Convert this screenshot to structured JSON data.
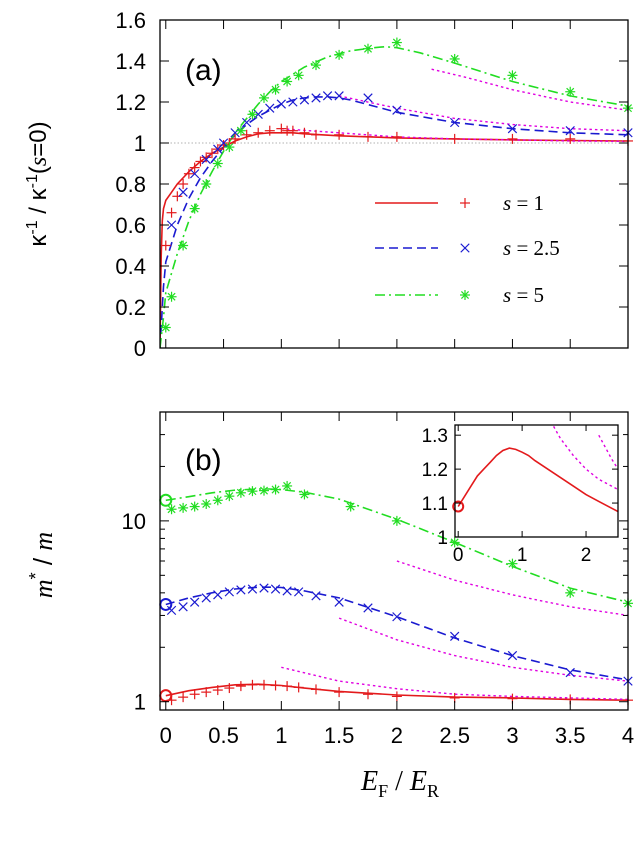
{
  "colors": {
    "s1": "#e31a1c",
    "s2_5": "#1a1ad0",
    "s5": "#22dd22",
    "dotted": "#e000e0",
    "ref": "#999999"
  },
  "shared_x_label": {
    "main": "E",
    "main_sub": "F",
    "sep": " / ",
    "den": "E",
    "den_sub": "R"
  },
  "chart_data": [
    {
      "id": "a",
      "type": "line",
      "panel_label": "(a)",
      "ylabel": {
        "kappa1": "κ",
        "sup1": "-1",
        "mid": " / ",
        "kappa2": "κ",
        "sup2": "-1",
        "tail_open": "(",
        "s": "s",
        "tail_close": "=0)"
      },
      "xlim": [
        -0.05,
        4
      ],
      "ylim": [
        0,
        1.6
      ],
      "x_ticks": [
        0,
        0.5,
        1,
        1.5,
        2,
        2.5,
        3,
        3.5,
        4
      ],
      "y_ticks": [
        0,
        0.2,
        0.4,
        0.6,
        0.8,
        1,
        1.2,
        1.4,
        1.6
      ],
      "y_tick_labels": [
        "0",
        "0.2",
        "0.4",
        "0.6",
        "0.8",
        "1",
        "1.2",
        "1.4",
        "1.6"
      ],
      "legend_position": "center-right",
      "reference_line": {
        "y": 1,
        "style": "dotted"
      },
      "series": [
        {
          "name": "s = 1",
          "s_value": "1",
          "line": "solid",
          "marker": "+",
          "color_key": "s1",
          "x": [
            -0.05,
            -0.04,
            -0.03,
            -0.02,
            0.0,
            0.05,
            0.1,
            0.2,
            0.3,
            0.4,
            0.5,
            0.6,
            0.7,
            0.8,
            0.9,
            1.0,
            1.1,
            1.2,
            1.5,
            2.0,
            2.5,
            3.0,
            3.5,
            4.0
          ],
          "y": [
            0.0,
            0.45,
            0.62,
            0.68,
            0.72,
            0.76,
            0.8,
            0.86,
            0.91,
            0.95,
            0.98,
            1.01,
            1.03,
            1.045,
            1.05,
            1.05,
            1.05,
            1.045,
            1.035,
            1.025,
            1.02,
            1.015,
            1.012,
            1.01
          ],
          "points_x": [
            0.0,
            0.05,
            0.1,
            0.15,
            0.2,
            0.25,
            0.3,
            0.35,
            0.4,
            0.45,
            0.5,
            0.55,
            0.6,
            0.7,
            0.8,
            0.9,
            1.0,
            1.05,
            1.1,
            1.2,
            1.3,
            1.5,
            1.75,
            2.0,
            2.5,
            3.0,
            3.5,
            4.0
          ],
          "points_y": [
            0.5,
            0.66,
            0.74,
            0.8,
            0.85,
            0.88,
            0.91,
            0.93,
            0.95,
            0.97,
            0.99,
            1.0,
            1.02,
            1.04,
            1.05,
            1.06,
            1.07,
            1.06,
            1.06,
            1.05,
            1.04,
            1.04,
            1.03,
            1.03,
            1.02,
            1.02,
            1.02,
            1.01
          ]
        },
        {
          "name": "s = 2.5",
          "s_value": "2.5",
          "line": "dashed",
          "marker": "x",
          "color_key": "s2_5",
          "x": [
            -0.05,
            -0.02,
            0.0,
            0.1,
            0.2,
            0.3,
            0.4,
            0.5,
            0.6,
            0.7,
            0.8,
            0.9,
            1.0,
            1.1,
            1.2,
            1.3,
            1.4,
            1.5,
            1.6,
            1.8,
            2.0,
            2.5,
            3.0,
            3.5,
            4.0
          ],
          "y": [
            0.0,
            0.3,
            0.42,
            0.6,
            0.73,
            0.83,
            0.91,
            0.98,
            1.04,
            1.09,
            1.13,
            1.16,
            1.19,
            1.21,
            1.22,
            1.225,
            1.225,
            1.22,
            1.21,
            1.18,
            1.15,
            1.1,
            1.07,
            1.05,
            1.04
          ],
          "points_x": [
            0.05,
            0.15,
            0.25,
            0.35,
            0.45,
            0.5,
            0.6,
            0.7,
            0.8,
            0.9,
            1.0,
            1.1,
            1.2,
            1.3,
            1.4,
            1.5,
            1.75,
            2.0,
            2.5,
            3.0,
            3.5,
            4.0
          ],
          "points_y": [
            0.6,
            0.76,
            0.85,
            0.92,
            0.97,
            1.0,
            1.05,
            1.1,
            1.14,
            1.17,
            1.19,
            1.2,
            1.21,
            1.22,
            1.23,
            1.23,
            1.22,
            1.16,
            1.1,
            1.07,
            1.06,
            1.05
          ]
        },
        {
          "name": "s = 5",
          "s_value": "5",
          "line": "dash-dot",
          "marker": "*",
          "color_key": "s5",
          "x": [
            -0.05,
            -0.02,
            0.0,
            0.1,
            0.2,
            0.3,
            0.4,
            0.5,
            0.6,
            0.7,
            0.8,
            0.9,
            1.0,
            1.2,
            1.4,
            1.6,
            1.8,
            1.9,
            2.0,
            2.2,
            2.5,
            3.0,
            3.5,
            4.0
          ],
          "y": [
            0.0,
            0.15,
            0.27,
            0.46,
            0.62,
            0.75,
            0.86,
            0.96,
            1.05,
            1.12,
            1.19,
            1.25,
            1.3,
            1.37,
            1.42,
            1.45,
            1.465,
            1.47,
            1.465,
            1.44,
            1.39,
            1.3,
            1.23,
            1.18
          ],
          "points_x": [
            0.0,
            0.05,
            0.15,
            0.25,
            0.35,
            0.45,
            0.55,
            0.65,
            0.75,
            0.85,
            0.95,
            1.05,
            1.15,
            1.3,
            1.5,
            1.75,
            2.0,
            2.5,
            3.0,
            3.5,
            4.0
          ],
          "points_y": [
            0.1,
            0.25,
            0.5,
            0.68,
            0.8,
            0.9,
            0.98,
            1.06,
            1.14,
            1.22,
            1.26,
            1.3,
            1.33,
            1.38,
            1.43,
            1.46,
            1.49,
            1.41,
            1.33,
            1.25,
            1.17
          ]
        },
        {
          "name": "",
          "line": "dotted",
          "color_key": "dotted",
          "x": [
            2.3,
            2.6,
            3.0,
            3.5,
            4.0
          ],
          "y": [
            1.36,
            1.32,
            1.26,
            1.2,
            1.16
          ]
        },
        {
          "name": "",
          "line": "dotted",
          "color_key": "dotted",
          "x": [
            1.5,
            2.0,
            2.5,
            3.0,
            3.5,
            4.0
          ],
          "y": [
            1.23,
            1.17,
            1.12,
            1.09,
            1.07,
            1.06
          ]
        },
        {
          "name": "",
          "line": "dotted",
          "color_key": "dotted",
          "x": [
            1.0,
            1.5,
            2.0,
            2.5,
            3.0,
            3.5,
            4.0
          ],
          "y": [
            1.07,
            1.05,
            1.03,
            1.02,
            1.015,
            1.01,
            1.008
          ]
        }
      ]
    },
    {
      "id": "b",
      "type": "line",
      "panel_label": "(b)",
      "ylabel": {
        "m": "m",
        "star": "*",
        "sep": " / ",
        "m2": "m"
      },
      "yscale": "log",
      "xlim": [
        -0.05,
        4
      ],
      "ylim": [
        0.9,
        40
      ],
      "x_ticks": [
        0,
        0.5,
        1,
        1.5,
        2,
        2.5,
        3,
        3.5,
        4
      ],
      "x_tick_labels": [
        "0",
        "0.5",
        "1",
        "1.5",
        "2",
        "2.5",
        "3",
        "3.5",
        "4"
      ],
      "y_ticks": [
        1,
        10
      ],
      "y_tick_labels": [
        "1",
        "10"
      ],
      "series": [
        {
          "name": "s = 1",
          "line": "solid",
          "marker": "+",
          "color_key": "s1",
          "x": [
            0.0,
            0.2,
            0.4,
            0.6,
            0.8,
            1.0,
            1.2,
            1.5,
            2.0,
            2.5,
            3.0,
            3.5,
            4.0
          ],
          "y": [
            1.08,
            1.15,
            1.2,
            1.24,
            1.25,
            1.23,
            1.19,
            1.14,
            1.09,
            1.06,
            1.05,
            1.03,
            1.02
          ],
          "open_circle": {
            "x": 0.0,
            "y": 1.08
          },
          "points_x": [
            0.05,
            0.15,
            0.25,
            0.35,
            0.45,
            0.55,
            0.65,
            0.75,
            0.85,
            0.95,
            1.05,
            1.15,
            1.3,
            1.5,
            1.75,
            2.0,
            2.5,
            3.0,
            3.5,
            4.0
          ],
          "points_y": [
            1.02,
            1.06,
            1.1,
            1.13,
            1.16,
            1.19,
            1.22,
            1.24,
            1.24,
            1.23,
            1.22,
            1.2,
            1.17,
            1.13,
            1.1,
            1.07,
            1.05,
            1.04,
            1.03,
            1.02
          ]
        },
        {
          "name": "s = 2.5",
          "line": "dashed",
          "marker": "x",
          "color_key": "s2_5",
          "x": [
            0.0,
            0.2,
            0.4,
            0.6,
            0.8,
            0.9,
            1.0,
            1.2,
            1.5,
            2.0,
            2.5,
            3.0,
            3.5,
            4.0
          ],
          "y": [
            3.45,
            3.75,
            4.0,
            4.2,
            4.3,
            4.3,
            4.28,
            4.1,
            3.75,
            2.95,
            2.25,
            1.8,
            1.5,
            1.32
          ],
          "open_circle": {
            "x": 0.0,
            "y": 3.45
          },
          "points_x": [
            0.05,
            0.15,
            0.25,
            0.35,
            0.45,
            0.55,
            0.65,
            0.75,
            0.85,
            0.95,
            1.05,
            1.15,
            1.3,
            1.5,
            1.75,
            2.0,
            2.5,
            3.0,
            3.5,
            4.0
          ],
          "points_y": [
            3.2,
            3.35,
            3.55,
            3.75,
            3.9,
            4.05,
            4.15,
            4.2,
            4.25,
            4.2,
            4.1,
            4.05,
            3.85,
            3.55,
            3.3,
            2.95,
            2.3,
            1.8,
            1.45,
            1.3
          ]
        },
        {
          "name": "s = 5",
          "line": "dash-dot",
          "marker": "*",
          "color_key": "s5",
          "x": [
            0.0,
            0.2,
            0.4,
            0.6,
            0.8,
            0.9,
            1.0,
            1.2,
            1.5,
            2.0,
            2.5,
            3.0,
            3.5,
            4.0
          ],
          "y": [
            13.0,
            13.6,
            14.3,
            14.8,
            15.0,
            15.0,
            14.9,
            14.4,
            13.2,
            10.2,
            7.6,
            5.6,
            4.25,
            3.55
          ],
          "open_circle": {
            "x": 0.0,
            "y": 13.0
          },
          "points_x": [
            0.05,
            0.15,
            0.25,
            0.35,
            0.45,
            0.55,
            0.65,
            0.75,
            0.85,
            0.95,
            1.05,
            1.2,
            1.6,
            2.0,
            2.5,
            3.0,
            3.5,
            4.0
          ],
          "points_y": [
            11.6,
            11.8,
            12.0,
            12.4,
            13.0,
            13.7,
            14.3,
            14.6,
            14.7,
            14.9,
            15.6,
            14.0,
            12.0,
            10.0,
            7.6,
            5.8,
            4.0,
            3.5
          ]
        },
        {
          "name": "",
          "line": "dotted",
          "color_key": "dotted",
          "x": [
            2.0,
            2.5,
            3.0,
            3.5,
            4.0
          ],
          "y": [
            6.0,
            4.7,
            3.9,
            3.35,
            3.0
          ]
        },
        {
          "name": "",
          "line": "dotted",
          "color_key": "dotted",
          "x": [
            1.5,
            2.0,
            2.5,
            3.0,
            3.5,
            4.0
          ],
          "y": [
            2.9,
            2.2,
            1.8,
            1.55,
            1.4,
            1.3
          ]
        },
        {
          "name": "",
          "line": "dotted",
          "color_key": "dotted",
          "x": [
            1.0,
            1.5,
            2.0,
            2.5,
            3.0,
            3.5,
            4.0
          ],
          "y": [
            1.55,
            1.3,
            1.18,
            1.1,
            1.07,
            1.05,
            1.03
          ]
        }
      ]
    },
    {
      "id": "b-inset",
      "type": "line",
      "xlim": [
        -0.05,
        2.5
      ],
      "ylim": [
        1.0,
        1.33
      ],
      "x_ticks": [
        0,
        1,
        2
      ],
      "x_tick_labels": [
        "0",
        "1",
        "2"
      ],
      "y_ticks": [
        1,
        1.1,
        1.2,
        1.3
      ],
      "y_tick_labels": [
        "1",
        "1.1",
        "1.2",
        "1.3"
      ],
      "series": [
        {
          "name": "",
          "line": "solid",
          "color_key": "s1",
          "x": [
            0.0,
            0.1,
            0.2,
            0.3,
            0.4,
            0.5,
            0.6,
            0.7,
            0.8,
            0.9,
            1.0,
            1.1,
            1.2,
            1.4,
            1.6,
            1.8,
            2.0,
            2.2,
            2.4,
            2.5
          ],
          "y": [
            1.09,
            1.12,
            1.15,
            1.18,
            1.2,
            1.22,
            1.24,
            1.255,
            1.262,
            1.258,
            1.25,
            1.24,
            1.225,
            1.2,
            1.175,
            1.15,
            1.125,
            1.105,
            1.085,
            1.075
          ],
          "open_circle": {
            "x": 0.0,
            "y": 1.09
          }
        },
        {
          "name": "",
          "line": "dotted",
          "color_key": "dotted",
          "x": [
            1.45,
            1.6,
            1.8,
            2.0,
            2.2,
            2.5
          ],
          "y": [
            1.34,
            1.29,
            1.24,
            1.2,
            1.17,
            1.14
          ]
        },
        {
          "name": "",
          "line": "dotted",
          "color_key": "dotted",
          "x": [
            2.2,
            2.3,
            2.4,
            2.5
          ],
          "y": [
            1.3,
            1.265,
            1.23,
            1.2
          ]
        }
      ]
    }
  ]
}
